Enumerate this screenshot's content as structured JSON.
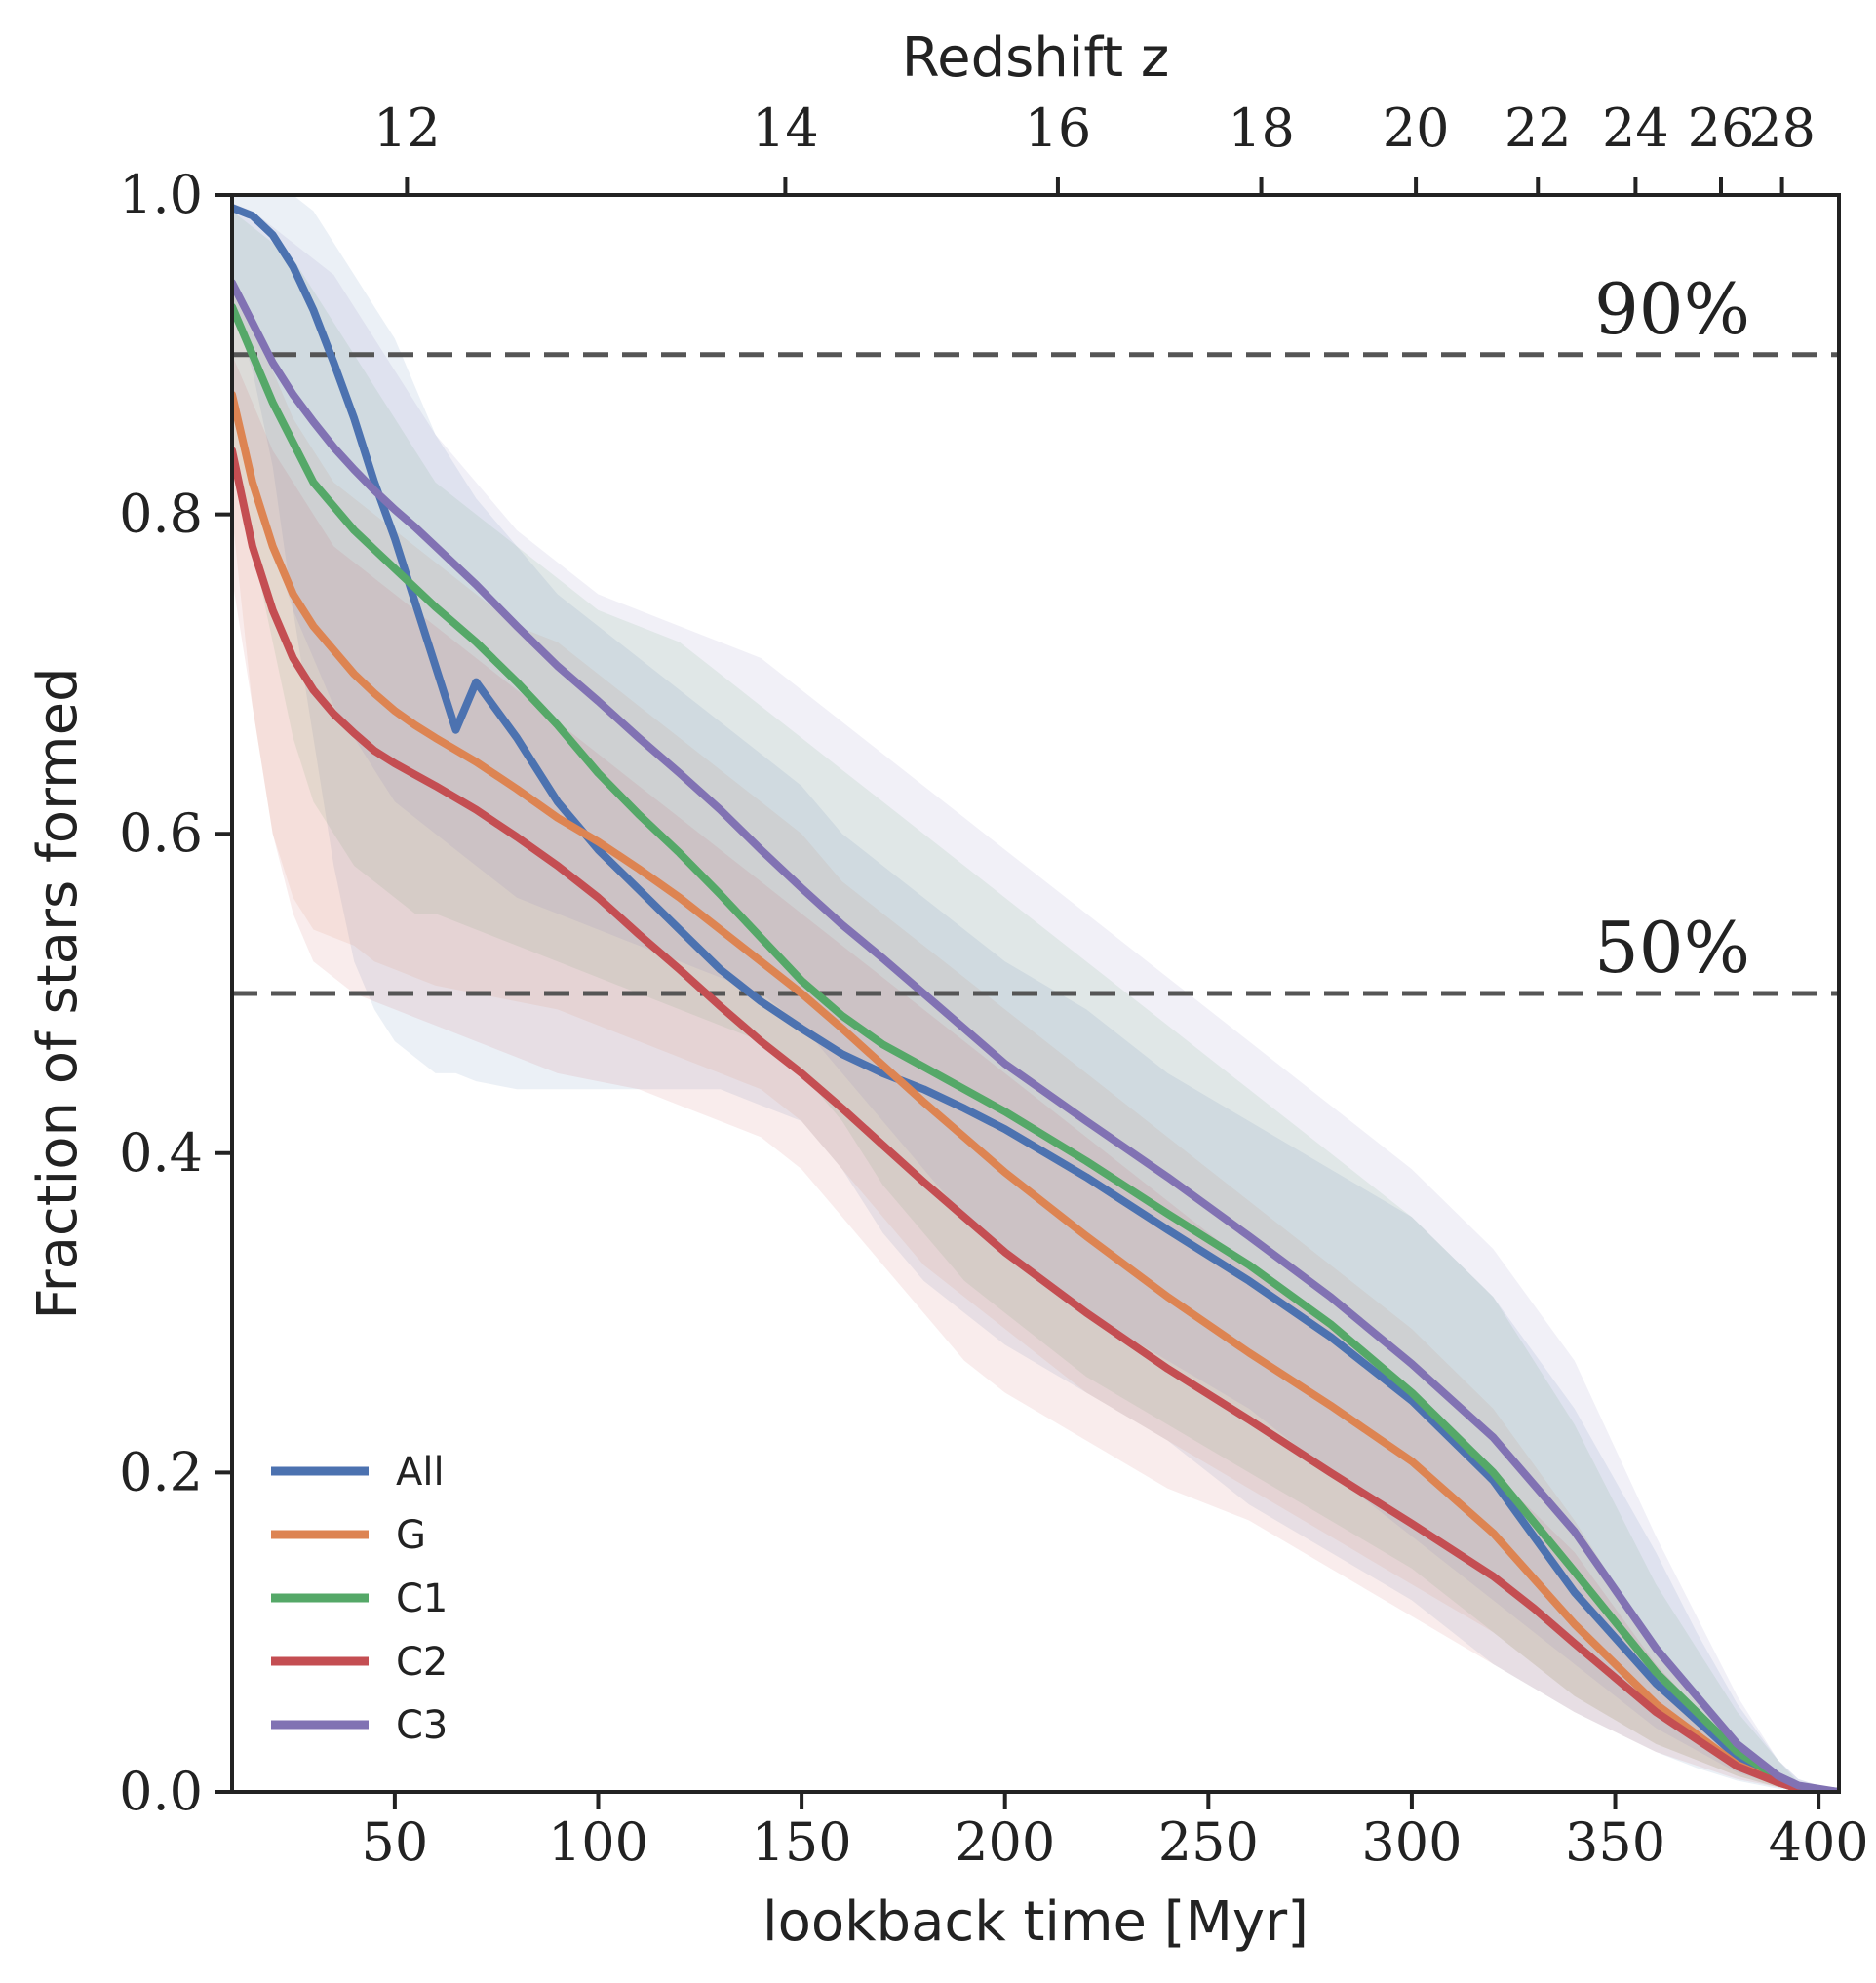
{
  "chart_data": {
    "type": "line",
    "title": "",
    "xlabel": "lookback time [Myr]",
    "ylabel": "Fraction of stars formed",
    "top_axis_label": "Redshift z",
    "xlim": [
      10,
      405
    ],
    "ylim": [
      0.0,
      1.0
    ],
    "x_ticks": [
      50,
      100,
      150,
      200,
      250,
      300,
      350,
      400
    ],
    "x_tick_labels": [
      "50",
      "100",
      "150",
      "200",
      "250",
      "300",
      "350",
      "400"
    ],
    "y_ticks": [
      0.0,
      0.2,
      0.4,
      0.6,
      0.8,
      1.0
    ],
    "y_tick_labels": [
      "0.0",
      "0.2",
      "0.4",
      "0.6",
      "0.8",
      "1.0"
    ],
    "top_ticks": [
      {
        "label": "12",
        "x": 53
      },
      {
        "label": "14",
        "x": 146
      },
      {
        "label": "16",
        "x": 213
      },
      {
        "label": "18",
        "x": 263
      },
      {
        "label": "20",
        "x": 301
      },
      {
        "label": "22",
        "x": 331
      },
      {
        "label": "24",
        "x": 355
      },
      {
        "label": "26",
        "x": 376
      },
      {
        "label": "28",
        "x": 391
      }
    ],
    "reference_lines": [
      {
        "y": 0.9,
        "label": "90%"
      },
      {
        "y": 0.5,
        "label": "50%"
      }
    ],
    "legend_position": "lower-left",
    "series": [
      {
        "name": "All",
        "color": "#4c72b0",
        "x": [
          10,
          15,
          20,
          25,
          30,
          35,
          40,
          45,
          50,
          55,
          60,
          65,
          70,
          80,
          90,
          100,
          110,
          120,
          130,
          140,
          150,
          160,
          170,
          180,
          190,
          200,
          220,
          240,
          260,
          280,
          300,
          320,
          340,
          360,
          370,
          380,
          390,
          395,
          405
        ],
        "y": [
          0.992,
          0.987,
          0.975,
          0.955,
          0.928,
          0.895,
          0.86,
          0.82,
          0.785,
          0.745,
          0.705,
          0.665,
          0.695,
          0.66,
          0.62,
          0.59,
          0.565,
          0.54,
          0.515,
          0.495,
          0.478,
          0.462,
          0.45,
          0.44,
          0.428,
          0.415,
          0.385,
          0.352,
          0.32,
          0.285,
          0.245,
          0.195,
          0.125,
          0.068,
          0.045,
          0.022,
          0.007,
          0.003,
          0.0
        ],
        "y_low": [
          0.93,
          0.89,
          0.83,
          0.74,
          0.66,
          0.58,
          0.52,
          0.49,
          0.47,
          0.46,
          0.45,
          0.45,
          0.445,
          0.44,
          0.44,
          0.44,
          0.44,
          0.44,
          0.44,
          0.43,
          0.42,
          0.39,
          0.35,
          0.32,
          0.3,
          0.28,
          0.25,
          0.22,
          0.18,
          0.15,
          0.12,
          0.08,
          0.05,
          0.025,
          0.015,
          0.007,
          0.002,
          0.001,
          0.0
        ],
        "y_high": [
          1.0,
          1.0,
          1.0,
          1.0,
          0.99,
          0.97,
          0.95,
          0.93,
          0.91,
          0.88,
          0.85,
          0.83,
          0.81,
          0.78,
          0.75,
          0.73,
          0.71,
          0.69,
          0.67,
          0.65,
          0.63,
          0.6,
          0.58,
          0.56,
          0.54,
          0.52,
          0.49,
          0.45,
          0.42,
          0.39,
          0.36,
          0.31,
          0.24,
          0.15,
          0.1,
          0.055,
          0.02,
          0.008,
          0.0
        ]
      },
      {
        "name": "G",
        "color": "#dd8452",
        "x": [
          10,
          15,
          20,
          25,
          30,
          35,
          40,
          45,
          50,
          55,
          60,
          70,
          80,
          90,
          100,
          110,
          120,
          130,
          140,
          150,
          160,
          170,
          180,
          190,
          200,
          220,
          240,
          260,
          280,
          300,
          320,
          340,
          360,
          380,
          390,
          395,
          405
        ],
        "y": [
          0.875,
          0.82,
          0.78,
          0.75,
          0.73,
          0.715,
          0.7,
          0.688,
          0.677,
          0.668,
          0.66,
          0.645,
          0.628,
          0.61,
          0.595,
          0.578,
          0.56,
          0.54,
          0.52,
          0.5,
          0.478,
          0.455,
          0.432,
          0.41,
          0.388,
          0.348,
          0.31,
          0.275,
          0.242,
          0.207,
          0.162,
          0.105,
          0.055,
          0.017,
          0.006,
          0.002,
          0.0
        ],
        "y_low": [
          0.8,
          0.68,
          0.6,
          0.56,
          0.54,
          0.535,
          0.53,
          0.52,
          0.515,
          0.51,
          0.505,
          0.5,
          0.495,
          0.49,
          0.48,
          0.47,
          0.46,
          0.45,
          0.44,
          0.42,
          0.39,
          0.36,
          0.33,
          0.31,
          0.29,
          0.25,
          0.22,
          0.19,
          0.16,
          0.13,
          0.1,
          0.06,
          0.03,
          0.01,
          0.003,
          0.001,
          0.0
        ],
        "y_high": [
          0.95,
          0.92,
          0.89,
          0.86,
          0.84,
          0.82,
          0.81,
          0.8,
          0.79,
          0.78,
          0.77,
          0.75,
          0.73,
          0.72,
          0.7,
          0.68,
          0.66,
          0.64,
          0.62,
          0.6,
          0.57,
          0.55,
          0.53,
          0.51,
          0.49,
          0.45,
          0.41,
          0.37,
          0.33,
          0.29,
          0.24,
          0.17,
          0.09,
          0.03,
          0.01,
          0.004,
          0.0
        ]
      },
      {
        "name": "C1",
        "color": "#55a868",
        "x": [
          10,
          15,
          20,
          25,
          30,
          35,
          40,
          45,
          50,
          55,
          60,
          70,
          80,
          90,
          100,
          110,
          120,
          130,
          140,
          150,
          160,
          170,
          180,
          190,
          200,
          220,
          240,
          260,
          280,
          300,
          320,
          340,
          360,
          380,
          390,
          395,
          405
        ],
        "y": [
          0.93,
          0.9,
          0.87,
          0.845,
          0.82,
          0.805,
          0.79,
          0.778,
          0.766,
          0.754,
          0.742,
          0.72,
          0.695,
          0.668,
          0.638,
          0.612,
          0.588,
          0.562,
          0.535,
          0.508,
          0.486,
          0.468,
          0.454,
          0.44,
          0.426,
          0.395,
          0.362,
          0.33,
          0.293,
          0.25,
          0.2,
          0.138,
          0.075,
          0.025,
          0.009,
          0.003,
          0.0
        ],
        "y_low": [
          0.85,
          0.78,
          0.72,
          0.66,
          0.62,
          0.6,
          0.58,
          0.57,
          0.56,
          0.55,
          0.55,
          0.54,
          0.53,
          0.52,
          0.51,
          0.5,
          0.49,
          0.48,
          0.47,
          0.45,
          0.42,
          0.38,
          0.35,
          0.32,
          0.3,
          0.26,
          0.23,
          0.2,
          0.17,
          0.14,
          0.1,
          0.06,
          0.03,
          0.01,
          0.003,
          0.001,
          0.0
        ],
        "y_high": [
          0.99,
          0.98,
          0.97,
          0.96,
          0.94,
          0.92,
          0.9,
          0.88,
          0.86,
          0.84,
          0.82,
          0.8,
          0.78,
          0.76,
          0.74,
          0.73,
          0.72,
          0.7,
          0.68,
          0.66,
          0.64,
          0.62,
          0.6,
          0.58,
          0.56,
          0.52,
          0.48,
          0.44,
          0.4,
          0.36,
          0.31,
          0.23,
          0.13,
          0.05,
          0.02,
          0.006,
          0.0
        ]
      },
      {
        "name": "C2",
        "color": "#c44e52",
        "x": [
          10,
          15,
          20,
          25,
          30,
          35,
          40,
          45,
          50,
          55,
          60,
          70,
          80,
          90,
          100,
          110,
          120,
          130,
          140,
          150,
          160,
          170,
          180,
          190,
          200,
          220,
          240,
          260,
          280,
          300,
          320,
          330,
          340,
          360,
          380,
          390,
          395,
          405
        ],
        "y": [
          0.84,
          0.78,
          0.74,
          0.71,
          0.69,
          0.675,
          0.663,
          0.652,
          0.644,
          0.637,
          0.63,
          0.615,
          0.598,
          0.58,
          0.56,
          0.537,
          0.515,
          0.492,
          0.47,
          0.45,
          0.428,
          0.405,
          0.382,
          0.36,
          0.338,
          0.3,
          0.265,
          0.233,
          0.2,
          0.168,
          0.135,
          0.115,
          0.093,
          0.05,
          0.016,
          0.006,
          0.002,
          0.0
        ],
        "y_low": [
          0.76,
          0.68,
          0.6,
          0.55,
          0.52,
          0.51,
          0.5,
          0.495,
          0.49,
          0.485,
          0.48,
          0.47,
          0.46,
          0.45,
          0.445,
          0.44,
          0.43,
          0.42,
          0.41,
          0.39,
          0.36,
          0.33,
          0.3,
          0.27,
          0.25,
          0.22,
          0.19,
          0.17,
          0.14,
          0.11,
          0.08,
          0.065,
          0.05,
          0.025,
          0.008,
          0.003,
          0.001,
          0.0
        ],
        "y_high": [
          0.9,
          0.87,
          0.84,
          0.82,
          0.8,
          0.78,
          0.77,
          0.76,
          0.75,
          0.74,
          0.73,
          0.71,
          0.69,
          0.67,
          0.65,
          0.63,
          0.61,
          0.59,
          0.57,
          0.55,
          0.53,
          0.51,
          0.49,
          0.47,
          0.45,
          0.41,
          0.37,
          0.33,
          0.29,
          0.25,
          0.2,
          0.175,
          0.15,
          0.08,
          0.025,
          0.01,
          0.004,
          0.0
        ]
      },
      {
        "name": "C3",
        "color": "#8172b3",
        "x": [
          10,
          15,
          20,
          25,
          30,
          35,
          40,
          45,
          50,
          55,
          60,
          70,
          80,
          90,
          100,
          110,
          120,
          130,
          140,
          150,
          160,
          170,
          180,
          190,
          200,
          220,
          240,
          260,
          280,
          300,
          320,
          340,
          360,
          380,
          390,
          395,
          405
        ],
        "y": [
          0.945,
          0.92,
          0.895,
          0.875,
          0.858,
          0.842,
          0.828,
          0.815,
          0.803,
          0.792,
          0.78,
          0.756,
          0.73,
          0.705,
          0.683,
          0.66,
          0.638,
          0.615,
          0.59,
          0.566,
          0.543,
          0.522,
          0.5,
          0.478,
          0.456,
          0.42,
          0.385,
          0.348,
          0.31,
          0.268,
          0.222,
          0.163,
          0.09,
          0.03,
          0.01,
          0.004,
          0.0
        ],
        "y_low": [
          0.87,
          0.82,
          0.78,
          0.74,
          0.71,
          0.68,
          0.66,
          0.64,
          0.62,
          0.61,
          0.6,
          0.58,
          0.56,
          0.55,
          0.54,
          0.53,
          0.52,
          0.51,
          0.5,
          0.48,
          0.45,
          0.42,
          0.39,
          0.36,
          0.34,
          0.3,
          0.27,
          0.24,
          0.2,
          0.16,
          0.12,
          0.08,
          0.04,
          0.012,
          0.004,
          0.001,
          0.0
        ],
        "y_high": [
          0.995,
          0.99,
          0.98,
          0.97,
          0.96,
          0.95,
          0.93,
          0.91,
          0.89,
          0.87,
          0.85,
          0.82,
          0.79,
          0.77,
          0.75,
          0.74,
          0.73,
          0.72,
          0.71,
          0.69,
          0.67,
          0.65,
          0.63,
          0.61,
          0.59,
          0.55,
          0.51,
          0.47,
          0.43,
          0.39,
          0.34,
          0.27,
          0.16,
          0.06,
          0.02,
          0.008,
          0.0
        ]
      }
    ]
  }
}
